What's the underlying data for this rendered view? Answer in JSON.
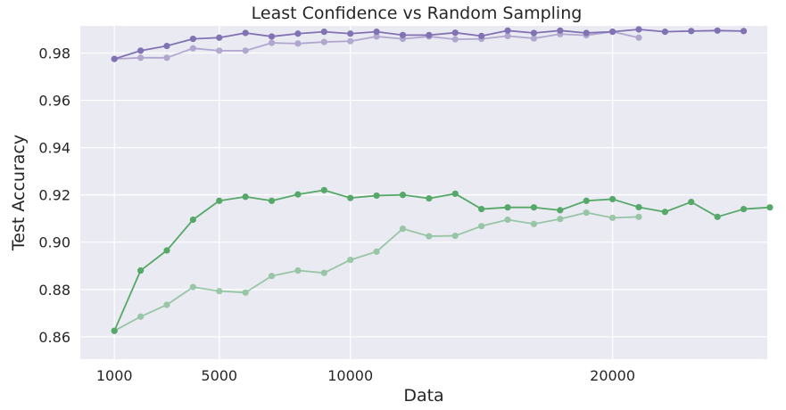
{
  "chart_data": {
    "type": "line",
    "title": "Least Confidence vs Random Sampling",
    "xlabel": "Data",
    "ylabel": "Test Accuracy",
    "xlim": [
      -300,
      25900
    ],
    "ylim": [
      0.8505,
      0.9915
    ],
    "xticks": [
      1000,
      5000,
      10000,
      20000
    ],
    "xtick_labels": [
      "1000",
      "5000",
      "10000",
      "20000"
    ],
    "yticks": [
      0.86,
      0.88,
      0.9,
      0.92,
      0.94,
      0.96,
      0.98
    ],
    "ytick_labels": [
      "0.86",
      "0.88",
      "0.90",
      "0.92",
      "0.94",
      "0.96",
      "0.98"
    ],
    "grid": true,
    "legend": "none",
    "background": "#eaeaf2",
    "series": [
      {
        "color": "#8172b3",
        "opacity": 1.0,
        "x": [
          1000,
          2000,
          3000,
          4000,
          5000,
          6000,
          7000,
          8000,
          9000,
          10000,
          11000,
          12000,
          13000,
          14000,
          15000,
          16000,
          17000,
          18000,
          19000,
          20000,
          21000,
          22000,
          23000,
          24000,
          25000
        ],
        "y": [
          0.9775,
          0.981,
          0.983,
          0.986,
          0.9865,
          0.9885,
          0.987,
          0.9882,
          0.989,
          0.9882,
          0.989,
          0.9876,
          0.9876,
          0.9886,
          0.9872,
          0.9895,
          0.9885,
          0.9895,
          0.9885,
          0.989,
          0.99,
          0.989,
          0.9893,
          0.9895,
          0.9893
        ]
      },
      {
        "color": "#8172b3",
        "opacity": 0.55,
        "x": [
          1000,
          2000,
          3000,
          4000,
          5000,
          6000,
          7000,
          8000,
          9000,
          10000,
          11000,
          12000,
          13000,
          14000,
          15000,
          16000,
          17000,
          18000,
          19000,
          20000,
          21000
        ],
        "y": [
          0.9775,
          0.978,
          0.978,
          0.982,
          0.981,
          0.981,
          0.9843,
          0.984,
          0.9847,
          0.985,
          0.987,
          0.986,
          0.987,
          0.9858,
          0.986,
          0.9872,
          0.9862,
          0.988,
          0.9875,
          0.989,
          0.9865
        ]
      },
      {
        "color": "#55a868",
        "opacity": 1.0,
        "x": [
          1000,
          2000,
          3000,
          4000,
          5000,
          6000,
          7000,
          8000,
          9000,
          10000,
          11000,
          12000,
          13000,
          14000,
          15000,
          16000,
          17000,
          18000,
          19000,
          20000,
          21000,
          22000,
          23000,
          24000,
          25000,
          26000
        ],
        "y": [
          0.8625,
          0.888,
          0.8965,
          0.9095,
          0.9175,
          0.9192,
          0.9175,
          0.9202,
          0.922,
          0.9187,
          0.9197,
          0.92,
          0.9185,
          0.9205,
          0.914,
          0.9147,
          0.9147,
          0.9135,
          0.9175,
          0.9182,
          0.9148,
          0.9128,
          0.917,
          0.9107,
          0.914,
          0.9147
        ]
      },
      {
        "color": "#55a868",
        "opacity": 0.55,
        "x": [
          1000,
          2000,
          3000,
          4000,
          5000,
          6000,
          7000,
          8000,
          9000,
          10000,
          11000,
          12000,
          13000,
          14000,
          15000,
          16000,
          17000,
          18000,
          19000,
          20000,
          21000
        ],
        "y": [
          0.8625,
          0.8685,
          0.8735,
          0.881,
          0.8793,
          0.8787,
          0.8857,
          0.888,
          0.887,
          0.8925,
          0.896,
          0.9057,
          0.9025,
          0.9027,
          0.9068,
          0.9095,
          0.9077,
          0.9098,
          0.9125,
          0.9103,
          0.9107
        ]
      }
    ]
  }
}
